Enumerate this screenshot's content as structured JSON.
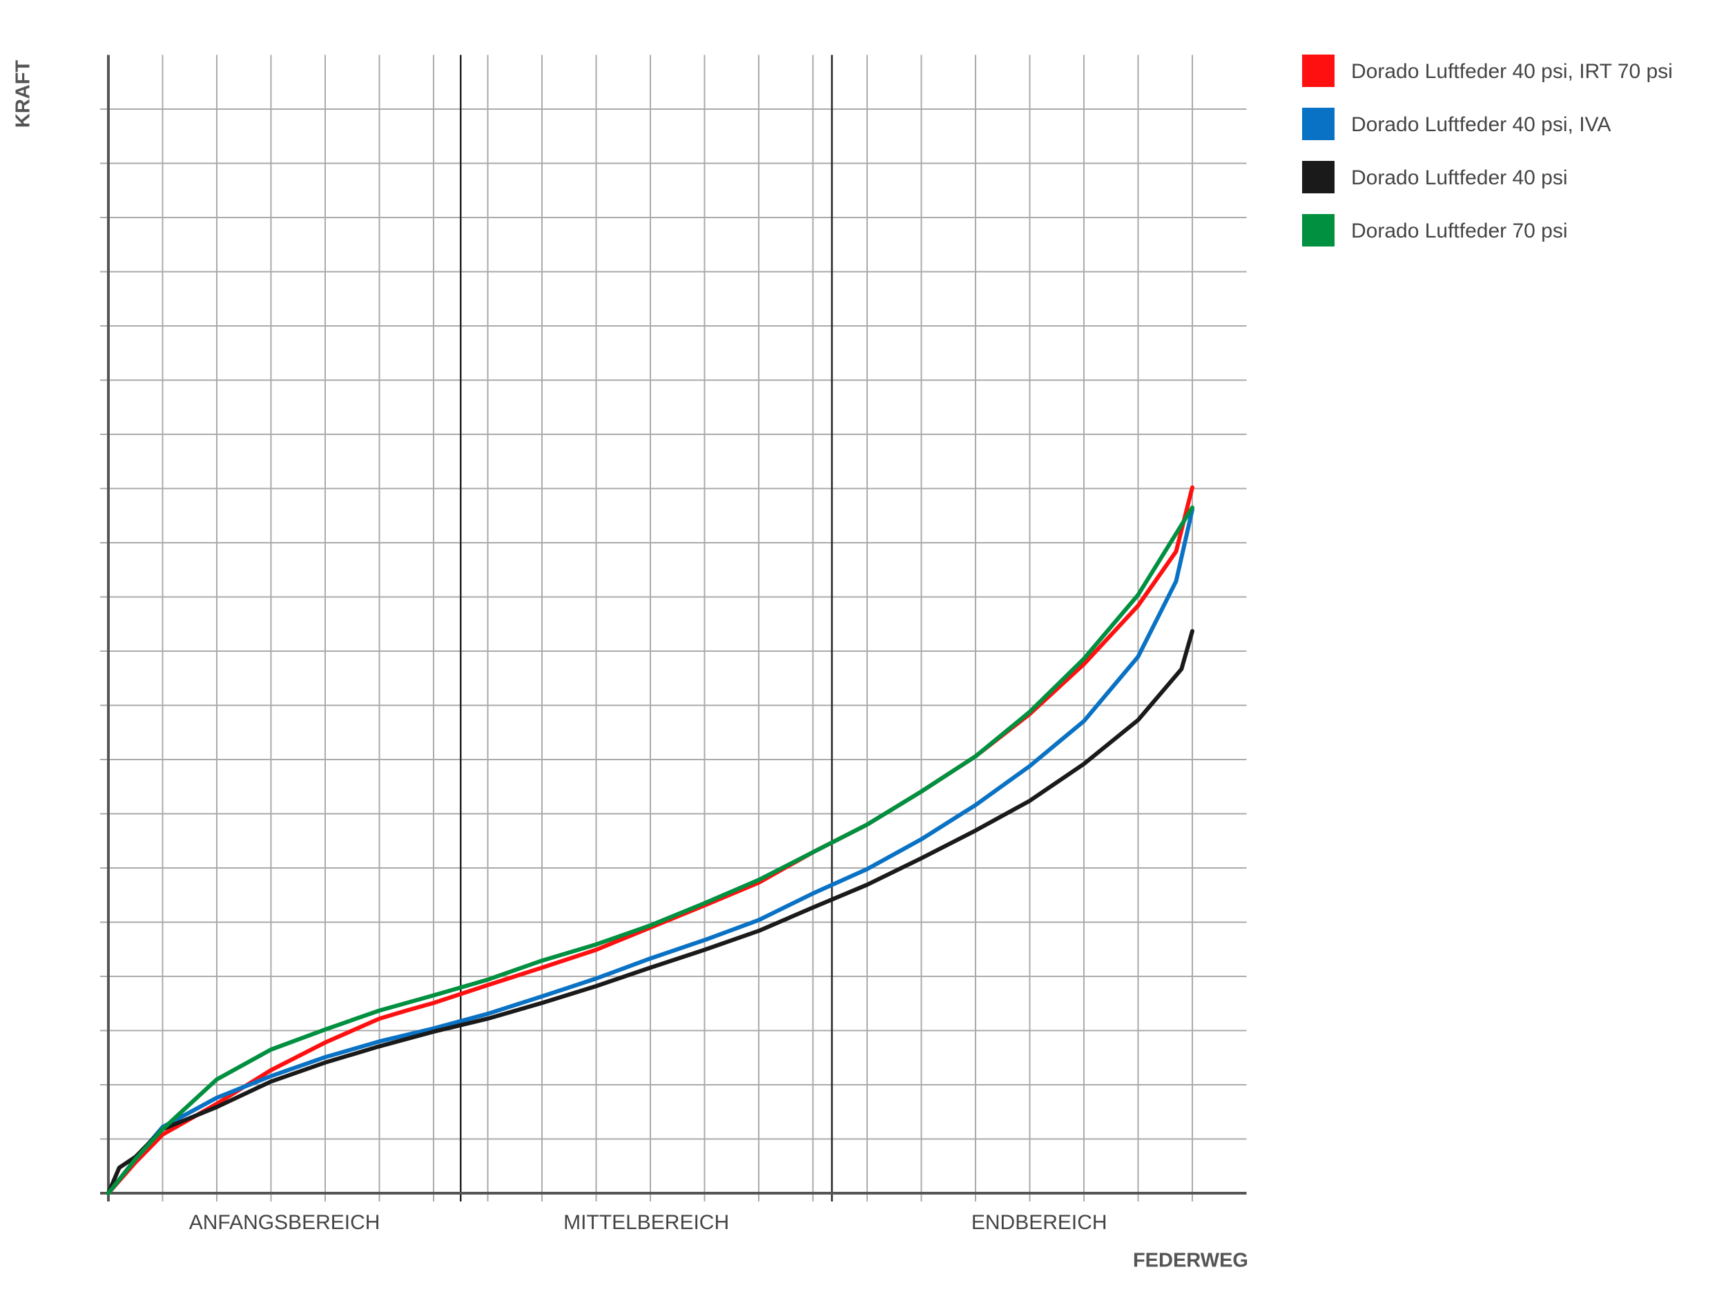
{
  "chart_data": {
    "type": "line",
    "x_label": "FEDERWEG",
    "y_label": "KRAFT",
    "xlim": [
      0,
      21
    ],
    "ylim": [
      0,
      21
    ],
    "xticks": [
      1,
      2,
      3,
      4,
      5,
      6,
      7,
      8,
      9,
      10,
      11,
      12,
      13,
      14,
      15,
      16,
      17,
      18,
      19,
      20
    ],
    "yticks": [
      1,
      2,
      3,
      4,
      5,
      6,
      7,
      8,
      9,
      10,
      11,
      12,
      13,
      14,
      15,
      16,
      17,
      18,
      19,
      20
    ],
    "grid": true,
    "legend": "top-right",
    "sections": [
      {
        "label": "ANFANGSBEREICH",
        "xlim": [
          0,
          6.5
        ]
      },
      {
        "label": "MITTELBEREICH",
        "xlim": [
          6.5,
          13.35
        ]
      },
      {
        "label": "ENDBEREICH",
        "xlim": [
          13.35,
          21
        ]
      }
    ],
    "series": [
      {
        "name": "Dorado Luftfeder 40 psi, IRT 70 psi",
        "color": "#ff1010",
        "x": [
          0,
          0.5,
          1,
          2,
          3,
          4,
          5,
          5.5,
          6,
          7,
          8,
          9,
          10,
          11,
          12,
          13,
          14,
          15,
          16,
          17,
          18,
          19,
          19.7,
          20
        ],
        "values": [
          0,
          0.57,
          1.08,
          1.65,
          2.27,
          2.78,
          3.22,
          3.37,
          3.51,
          3.84,
          4.16,
          4.49,
          4.9,
          5.31,
          5.73,
          6.29,
          6.8,
          7.41,
          8.06,
          8.84,
          9.76,
          10.84,
          11.84,
          13.02
        ]
      },
      {
        "name": "Dorado Luftfeder 40 psi, IVA",
        "color": "#0a72c4",
        "x": [
          0,
          0.5,
          1,
          2,
          3,
          4,
          5,
          6,
          7,
          8,
          9,
          10,
          11,
          12,
          13,
          14,
          15,
          16,
          17,
          18,
          19,
          19.7,
          20
        ],
        "values": [
          0,
          0.63,
          1.22,
          1.76,
          2.16,
          2.51,
          2.8,
          3.04,
          3.31,
          3.63,
          3.96,
          4.33,
          4.67,
          5.04,
          5.53,
          5.98,
          6.53,
          7.16,
          7.88,
          8.71,
          9.9,
          11.29,
          12.61
        ]
      },
      {
        "name": "Dorado Luftfeder 40 psi",
        "color": "#1a1a1a",
        "x": [
          0,
          0.2,
          0.5,
          1,
          2,
          3,
          4,
          5,
          6,
          7,
          8,
          9,
          10,
          11,
          12,
          13,
          14,
          15,
          16,
          17,
          18,
          19,
          19.8,
          20
        ],
        "values": [
          0,
          0.47,
          0.67,
          1.18,
          1.59,
          2.06,
          2.41,
          2.71,
          2.98,
          3.22,
          3.51,
          3.82,
          4.16,
          4.49,
          4.84,
          5.27,
          5.69,
          6.18,
          6.69,
          7.24,
          7.92,
          8.73,
          9.67,
          10.37
        ]
      },
      {
        "name": "Dorado Luftfeder 70 psi",
        "color": "#009040",
        "x": [
          0,
          0.5,
          1,
          2,
          3,
          4,
          5,
          6,
          7,
          8,
          9,
          10,
          11,
          12,
          13,
          14,
          15,
          16,
          17,
          18,
          19,
          20
        ],
        "values": [
          0,
          0.63,
          1.18,
          2.1,
          2.65,
          3.02,
          3.37,
          3.65,
          3.94,
          4.29,
          4.59,
          4.94,
          5.35,
          5.78,
          6.29,
          6.8,
          7.41,
          8.06,
          8.88,
          9.86,
          11.04,
          12.65
        ]
      }
    ]
  }
}
